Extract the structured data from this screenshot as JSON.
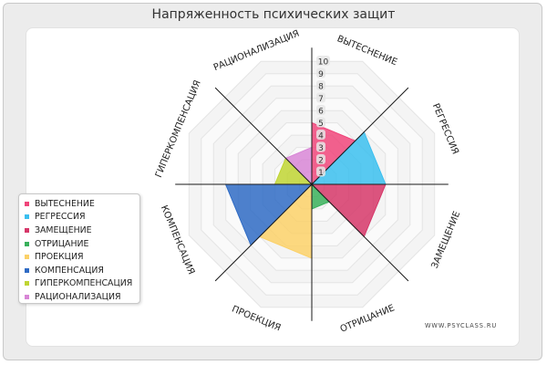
{
  "title": "Напряженность психических защит",
  "watermark": "WWW.PSYCLASS.RU",
  "chart_data": {
    "type": "polar-area",
    "title": "Напряженность психических защит",
    "categories": [
      "ВЫТЕСНЕНИЕ",
      "РЕГРЕССИЯ",
      "ЗАМЕЩЕНИЕ",
      "ОТРИЦАНИЕ",
      "ПРОЕКЦИЯ",
      "КОМПЕНСАЦИЯ",
      "ГИПЕРКОМПЕНСАЦИЯ",
      "РАЦИОНАЛИЗАЦИЯ"
    ],
    "values": [
      5,
      6,
      6,
      2,
      6,
      7,
      3,
      3
    ],
    "colors": [
      "#f0457a",
      "#3bbfef",
      "#d63769",
      "#39b05b",
      "#fbd168",
      "#2f6bc4",
      "#bfd533",
      "#d886d6"
    ],
    "radial_ticks": [
      "1",
      "2",
      "3",
      "4",
      "5",
      "6",
      "7",
      "8",
      "9",
      "10"
    ],
    "rlim": [
      0,
      10
    ],
    "legend_position": "left",
    "grid": true
  }
}
